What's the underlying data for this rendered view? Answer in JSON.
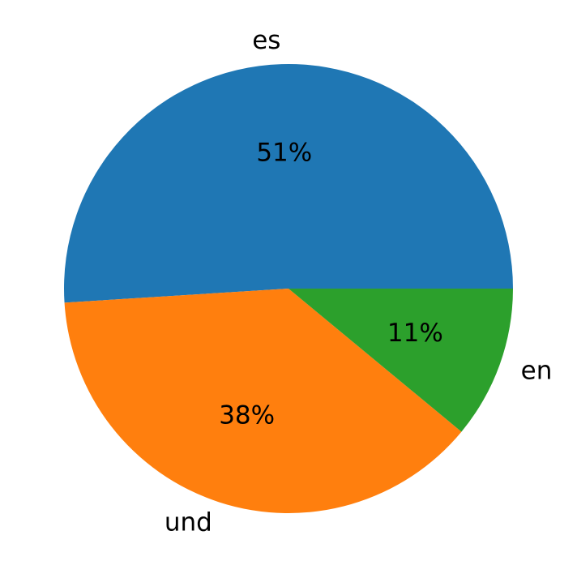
{
  "chart_data": {
    "type": "pie",
    "categories": [
      "es",
      "und",
      "en"
    ],
    "values": [
      51,
      38,
      11
    ],
    "value_labels": [
      "51%",
      "38%",
      "11%"
    ],
    "colors": [
      "#1f77b4",
      "#ff7f0e",
      "#2ca02c"
    ]
  }
}
